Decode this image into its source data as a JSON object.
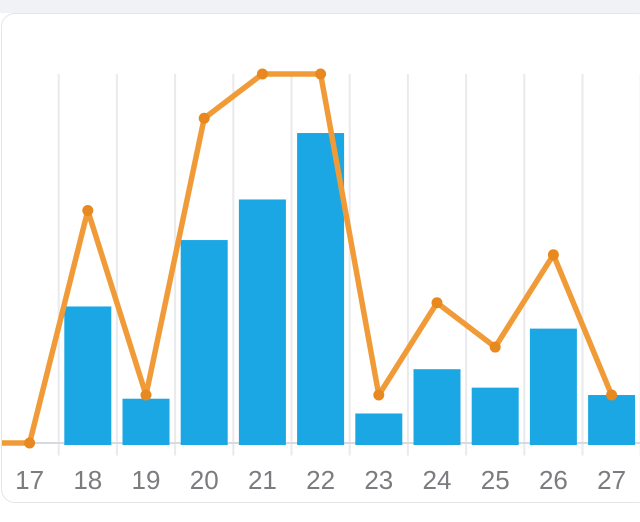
{
  "page": {
    "background": "#ffffff",
    "top_band_color": "#f1f2f6"
  },
  "card": {
    "background": "#ffffff",
    "border_color": "#e3e5e9"
  },
  "chart_data": {
    "type": "combo",
    "title": "",
    "xlabel": "",
    "ylabel": "",
    "categories": [
      "17",
      "18",
      "19",
      "20",
      "21",
      "22",
      "23",
      "24",
      "25",
      "26",
      "27"
    ],
    "series": [
      {
        "name": "bars",
        "type": "bar",
        "color": "#1BA7E3",
        "values": [
          0,
          37,
          12,
          55,
          66,
          84,
          8,
          20,
          15,
          31,
          13
        ]
      },
      {
        "name": "line",
        "type": "line",
        "color": "#F09B38",
        "marker_color": "#E8891F",
        "values": [
          0,
          63,
          13,
          88,
          100,
          100,
          13,
          38,
          26,
          51,
          13
        ],
        "left_edge_start_value": 0
      }
    ],
    "ylim": [
      0,
      100
    ],
    "y_axis_labels_visible": false,
    "y_units": "normalized 0-100 (no y-axis scale shown in image)",
    "grid": "vertical",
    "grid_color": "#e9eaed",
    "baseline_color": "#d8dade",
    "legend": "none",
    "x_tick_color": "#7b7b80"
  }
}
